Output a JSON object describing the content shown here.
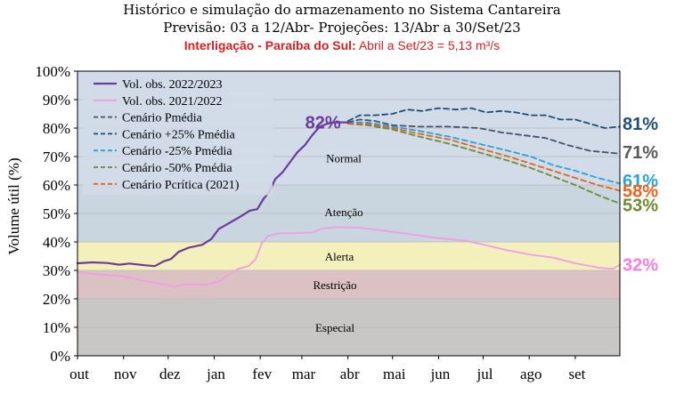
{
  "header": {
    "line1": "Histórico e simulação do armazenamento no Sistema Cantareira",
    "line2": "Previsão: 03 a 12/Abr- Projeções: 13/Abr a 30/Set/23",
    "line3_bold": "Interligação - Paraíba do Sul:",
    "line3_rest": " Abril a Set/23 = 5,13 m³/s"
  },
  "chart_data": {
    "type": "line",
    "title": "Histórico e simulação do armazenamento no Sistema Cantareira",
    "xlabel": "",
    "ylabel": "Volume útil (%)",
    "ylim": [
      0,
      100
    ],
    "yticks": [
      "0%",
      "10%",
      "20%",
      "30%",
      "40%",
      "50%",
      "60%",
      "70%",
      "80%",
      "90%",
      "100%"
    ],
    "xlim": [
      0,
      365
    ],
    "x_unit": "days since 1 Oct (Oct to Sep)",
    "xticks": [
      {
        "label": "out",
        "x": 0
      },
      {
        "label": "nov",
        "x": 31
      },
      {
        "label": "dez",
        "x": 61
      },
      {
        "label": "jan",
        "x": 92
      },
      {
        "label": "fev",
        "x": 123
      },
      {
        "label": "mar",
        "x": 151
      },
      {
        "label": "abr",
        "x": 182
      },
      {
        "label": "mai",
        "x": 212
      },
      {
        "label": "jun",
        "x": 243
      },
      {
        "label": "jul",
        "x": 273
      },
      {
        "label": "ago",
        "x": 304
      },
      {
        "label": "set",
        "x": 335
      }
    ],
    "zones": [
      {
        "name": "Especial",
        "from": 0,
        "to": 20,
        "color": "#c9c7c5"
      },
      {
        "name": "Restrição",
        "from": 20,
        "to": 30,
        "color": "#dcc1c3"
      },
      {
        "name": "Alerta",
        "from": 30,
        "to": 40,
        "color": "#f4f0bb"
      },
      {
        "name": "Atenção",
        "from": 40,
        "to": 60,
        "color": "#c9d6df"
      },
      {
        "name": "Normal",
        "from": 60,
        "to": 100,
        "color": "#d2dbe8"
      }
    ],
    "annotation": {
      "text": "82%",
      "x": 182,
      "y": 82,
      "color": "#6a3d9a"
    },
    "legend_position": "top-left",
    "series": [
      {
        "name": "Vol. obs. 2022/2023",
        "color": "#6a3d9a",
        "dash": "",
        "width": 2.2,
        "points": [
          [
            0,
            32.5
          ],
          [
            10,
            32.8
          ],
          [
            20,
            32.6
          ],
          [
            28,
            32.0
          ],
          [
            35,
            32.4
          ],
          [
            45,
            31.8
          ],
          [
            52,
            31.5
          ],
          [
            58,
            33.2
          ],
          [
            63,
            34.0
          ],
          [
            68,
            36.5
          ],
          [
            75,
            38.0
          ],
          [
            84,
            39.0
          ],
          [
            90,
            41.0
          ],
          [
            95,
            44.5
          ],
          [
            100,
            46.0
          ],
          [
            105,
            47.5
          ],
          [
            110,
            49.0
          ],
          [
            116,
            51.0
          ],
          [
            121,
            51.5
          ],
          [
            125,
            55.0
          ],
          [
            129,
            57.5
          ],
          [
            133,
            62.0
          ],
          [
            138,
            64.5
          ],
          [
            143,
            68.0
          ],
          [
            148,
            71.5
          ],
          [
            153,
            74.0
          ],
          [
            158,
            77.5
          ],
          [
            163,
            80.5
          ],
          [
            168,
            81.5
          ],
          [
            173,
            82.0
          ],
          [
            182,
            82.0
          ]
        ]
      },
      {
        "name": "Vol. obs. 2021/2022",
        "color": "#f19ce6",
        "dash": "",
        "width": 1.8,
        "points": [
          [
            0,
            29.5
          ],
          [
            15,
            28.5
          ],
          [
            30,
            28.0
          ],
          [
            38,
            27.0
          ],
          [
            50,
            25.8
          ],
          [
            58,
            25.0
          ],
          [
            65,
            24.3
          ],
          [
            72,
            25.0
          ],
          [
            85,
            25.0
          ],
          [
            95,
            26.0
          ],
          [
            100,
            28.0
          ],
          [
            108,
            30.5
          ],
          [
            115,
            31.5
          ],
          [
            120,
            34.0
          ],
          [
            124,
            39.5
          ],
          [
            128,
            42.0
          ],
          [
            135,
            43.0
          ],
          [
            145,
            43.0
          ],
          [
            158,
            43.3
          ],
          [
            165,
            44.8
          ],
          [
            175,
            45.2
          ],
          [
            190,
            45.0
          ],
          [
            205,
            44.0
          ],
          [
            220,
            43.0
          ],
          [
            240,
            41.5
          ],
          [
            260,
            40.5
          ],
          [
            275,
            38.8
          ],
          [
            290,
            37.0
          ],
          [
            305,
            35.5
          ],
          [
            320,
            34.5
          ],
          [
            335,
            32.5
          ],
          [
            350,
            31.0
          ],
          [
            360,
            30.5
          ],
          [
            365,
            32.0
          ]
        ]
      },
      {
        "name": "Cenário Pmédia",
        "color": "#44546a",
        "dash": "6,4",
        "width": 1.8,
        "points": [
          [
            182,
            82.0
          ],
          [
            190,
            83.0
          ],
          [
            200,
            82.5
          ],
          [
            212,
            81.0
          ],
          [
            230,
            80.5
          ],
          [
            250,
            80.5
          ],
          [
            270,
            80.0
          ],
          [
            285,
            78.5
          ],
          [
            300,
            77.5
          ],
          [
            315,
            76.5
          ],
          [
            330,
            74.0
          ],
          [
            345,
            72.0
          ],
          [
            365,
            71.0
          ]
        ]
      },
      {
        "name": "Cenário +25% Pmédia",
        "color": "#1f4e79",
        "dash": "6,4",
        "width": 1.8,
        "points": [
          [
            182,
            82.5
          ],
          [
            190,
            84.5
          ],
          [
            200,
            84.5
          ],
          [
            212,
            85.0
          ],
          [
            222,
            86.5
          ],
          [
            232,
            86.0
          ],
          [
            243,
            87.0
          ],
          [
            255,
            86.5
          ],
          [
            265,
            87.0
          ],
          [
            275,
            85.5
          ],
          [
            285,
            86.0
          ],
          [
            295,
            85.5
          ],
          [
            305,
            84.5
          ],
          [
            315,
            84.5
          ],
          [
            325,
            83.0
          ],
          [
            335,
            83.0
          ],
          [
            345,
            81.5
          ],
          [
            355,
            80.0
          ],
          [
            365,
            80.5
          ]
        ]
      },
      {
        "name": "Cenário -25% Pmédia",
        "color": "#29a3d7",
        "dash": "6,4",
        "width": 1.8,
        "points": [
          [
            182,
            82.0
          ],
          [
            195,
            82.0
          ],
          [
            212,
            80.5
          ],
          [
            230,
            79.0
          ],
          [
            250,
            77.0
          ],
          [
            270,
            74.5
          ],
          [
            290,
            72.0
          ],
          [
            305,
            70.0
          ],
          [
            320,
            67.0
          ],
          [
            335,
            65.0
          ],
          [
            350,
            62.5
          ],
          [
            365,
            60.5
          ]
        ]
      },
      {
        "name": "Cenário -50% Pmédia",
        "color": "#6f8a37",
        "dash": "6,4",
        "width": 1.8,
        "points": [
          [
            182,
            81.5
          ],
          [
            195,
            81.0
          ],
          [
            212,
            79.5
          ],
          [
            230,
            77.0
          ],
          [
            250,
            74.5
          ],
          [
            270,
            71.5
          ],
          [
            290,
            68.5
          ],
          [
            305,
            66.0
          ],
          [
            320,
            63.0
          ],
          [
            335,
            60.0
          ],
          [
            350,
            56.5
          ],
          [
            365,
            53.5
          ]
        ]
      },
      {
        "name": "Cenário Pcrítica (2021)",
        "color": "#e5641e",
        "dash": "6,4",
        "width": 1.8,
        "points": [
          [
            182,
            81.5
          ],
          [
            195,
            81.5
          ],
          [
            212,
            80.0
          ],
          [
            230,
            78.0
          ],
          [
            250,
            76.0
          ],
          [
            270,
            73.0
          ],
          [
            290,
            70.0
          ],
          [
            305,
            67.5
          ],
          [
            320,
            65.0
          ],
          [
            335,
            62.5
          ],
          [
            350,
            60.0
          ],
          [
            365,
            58.0
          ]
        ]
      }
    ],
    "end_labels": [
      {
        "text": "81%",
        "color": "#1f4e79",
        "y": 81.5
      },
      {
        "text": "71%",
        "color": "#595959",
        "y": 71.5
      },
      {
        "text": "61%",
        "color": "#29a3d7",
        "y": 61.5
      },
      {
        "text": "58%",
        "color": "#e5641e",
        "y": 58.0
      },
      {
        "text": "53%",
        "color": "#6f8a37",
        "y": 53.0
      },
      {
        "text": "32%",
        "color": "#f07ee5",
        "y": 32.0
      }
    ]
  }
}
